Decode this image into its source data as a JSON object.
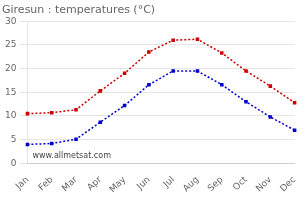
{
  "chart_data": {
    "type": "line",
    "title": "Giresun : temperatures (°C)",
    "categories": [
      "Jan",
      "Feb",
      "Mar",
      "Apr",
      "May",
      "Jun",
      "Jul",
      "Aug",
      "Sep",
      "Oct",
      "Nov",
      "Dec"
    ],
    "series": [
      {
        "color": "#cc0000",
        "values": [
          10.5,
          10.7,
          11.3,
          15.3,
          19.0,
          23.5,
          26.0,
          26.2,
          23.3,
          19.5,
          16.3,
          12.8
        ],
        "marker": "square",
        "line_style": "dotted"
      },
      {
        "color": "#0000cc",
        "values": [
          4.0,
          4.2,
          5.1,
          8.7,
          12.2,
          16.6,
          19.5,
          19.5,
          16.6,
          13.0,
          9.8,
          7.0
        ],
        "marker": "square",
        "line_style": "dotted"
      }
    ],
    "ylim": [
      0,
      30
    ],
    "yticks": [
      0,
      5,
      10,
      15,
      20,
      25,
      30
    ],
    "grid": true,
    "annotations": [
      "www.allmetsat.com"
    ]
  }
}
